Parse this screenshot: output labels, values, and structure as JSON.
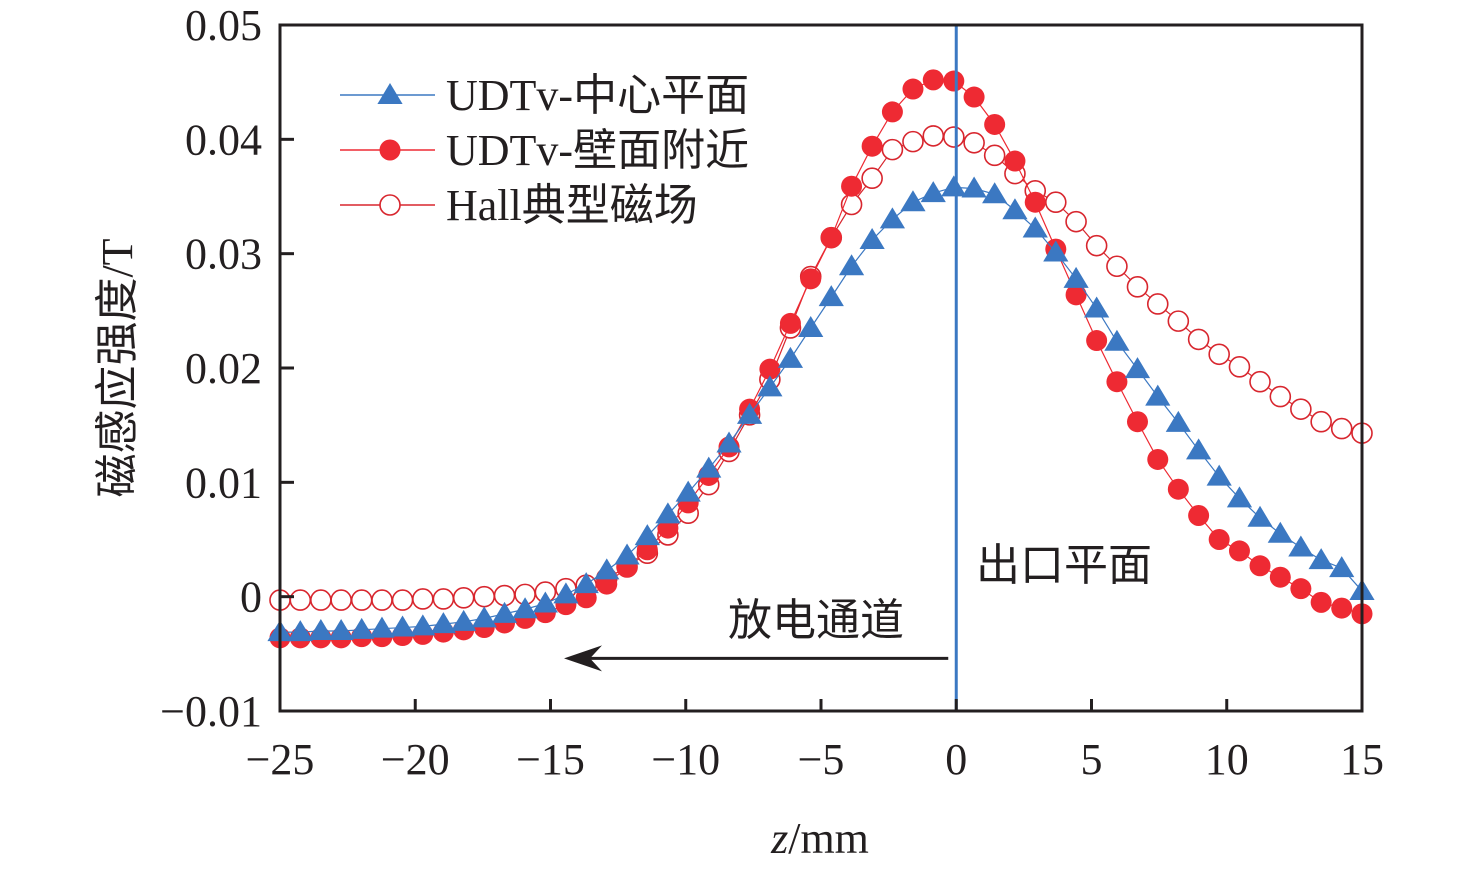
{
  "chart_data": {
    "type": "line",
    "title": "",
    "xlabel_italic": "z",
    "xlabel_rest": "/mm",
    "ylabel": "磁感应强度/T",
    "xlim": [
      -25,
      15
    ],
    "ylim": [
      -0.01,
      0.05
    ],
    "xticks": [
      -25,
      -20,
      -15,
      -10,
      -5,
      0,
      5,
      10,
      15
    ],
    "xtick_labels": [
      "−25",
      "−20",
      "−15",
      "−10",
      "−5",
      "0",
      "5",
      "10",
      "15"
    ],
    "yticks": [
      -0.01,
      0,
      0.01,
      0.02,
      0.03,
      0.04,
      0.05
    ],
    "ytick_labels": [
      "−0.01",
      "0",
      "0.01",
      "0.02",
      "0.03",
      "0.04",
      "0.05"
    ],
    "grid": false,
    "legend_position": "top-left",
    "x": [
      -25,
      -24.25,
      -23.49,
      -22.74,
      -21.98,
      -21.23,
      -20.47,
      -19.72,
      -18.96,
      -18.21,
      -17.45,
      -16.7,
      -15.94,
      -15.19,
      -14.43,
      -13.68,
      -12.92,
      -12.17,
      -11.42,
      -10.66,
      -9.91,
      -9.15,
      -8.4,
      -7.64,
      -6.89,
      -6.13,
      -5.38,
      -4.62,
      -3.87,
      -3.11,
      -2.36,
      -1.6,
      -0.85,
      -0.09,
      0.66,
      1.42,
      2.17,
      2.92,
      3.68,
      4.43,
      5.19,
      5.94,
      6.7,
      7.45,
      8.21,
      8.96,
      9.72,
      10.47,
      11.23,
      11.98,
      12.74,
      13.49,
      14.25,
      15.0
    ],
    "series": [
      {
        "name": "UDTv-中心平面",
        "marker": "triangle-filled",
        "color": "#3b78c2",
        "values": [
          -0.0031,
          -0.0031,
          -0.003,
          -0.003,
          -0.0029,
          -0.0028,
          -0.0027,
          -0.0026,
          -0.0024,
          -0.0022,
          -0.0019,
          -0.0015,
          -0.0011,
          -0.0006,
          0.0002,
          0.0011,
          0.0023,
          0.0036,
          0.0053,
          0.0072,
          0.0091,
          0.0112,
          0.0134,
          0.0159,
          0.0183,
          0.0208,
          0.0235,
          0.0262,
          0.0289,
          0.0312,
          0.033,
          0.0345,
          0.0353,
          0.0358,
          0.0357,
          0.0352,
          0.0338,
          0.0322,
          0.0301,
          0.0278,
          0.0252,
          0.0223,
          0.0199,
          0.0175,
          0.0152,
          0.0128,
          0.0105,
          0.0086,
          0.0069,
          0.0055,
          0.0043,
          0.0032,
          0.0025,
          0.0005
        ]
      },
      {
        "name": "UDTv-壁面附近",
        "marker": "circle-filled",
        "color": "#ee2a33",
        "values": [
          -0.0036,
          -0.0036,
          -0.0036,
          -0.0036,
          -0.0035,
          -0.0035,
          -0.0034,
          -0.0033,
          -0.0031,
          -0.0029,
          -0.0027,
          -0.0023,
          -0.0019,
          -0.0014,
          -0.0007,
          -0.0001,
          0.0011,
          0.0026,
          0.0041,
          0.006,
          0.0082,
          0.0106,
          0.0131,
          0.0164,
          0.0199,
          0.0239,
          0.0278,
          0.0314,
          0.0359,
          0.0394,
          0.0424,
          0.0444,
          0.0452,
          0.0451,
          0.0437,
          0.0413,
          0.0381,
          0.0345,
          0.0304,
          0.0264,
          0.0224,
          0.0188,
          0.0153,
          0.012,
          0.0094,
          0.0071,
          0.005,
          0.004,
          0.0027,
          0.0017,
          0.0007,
          -0.0005,
          -0.001,
          -0.0015
        ]
      },
      {
        "name": "Hall典型磁场",
        "marker": "circle-open",
        "color": "#d8262e",
        "values": [
          -0.0003,
          -0.0003,
          -0.0003,
          -0.0003,
          -0.0003,
          -0.0003,
          -0.0003,
          -0.0002,
          -0.0002,
          -0.0001,
          0.0,
          0.0001,
          0.0002,
          0.0004,
          0.0007,
          0.001,
          0.0016,
          0.0026,
          0.0038,
          0.0054,
          0.0073,
          0.0098,
          0.0127,
          0.0159,
          0.019,
          0.0235,
          0.028,
          0.0314,
          0.0343,
          0.0366,
          0.0391,
          0.0398,
          0.0403,
          0.0402,
          0.0397,
          0.0386,
          0.037,
          0.0355,
          0.0345,
          0.0328,
          0.0307,
          0.0289,
          0.0271,
          0.0256,
          0.0241,
          0.0225,
          0.0212,
          0.0201,
          0.0188,
          0.0175,
          0.0164,
          0.0153,
          0.0147,
          0.0143
        ]
      }
    ],
    "reference_line": {
      "x": 0,
      "color": "#3b78c2"
    },
    "annotations": [
      {
        "id": "exit-plane",
        "text": "出口平面"
      },
      {
        "id": "discharge-channel",
        "text": "放电通道",
        "arrow_from_x": 0,
        "arrow_to_x": -14.5,
        "arrow_y": -0.0054
      }
    ]
  }
}
